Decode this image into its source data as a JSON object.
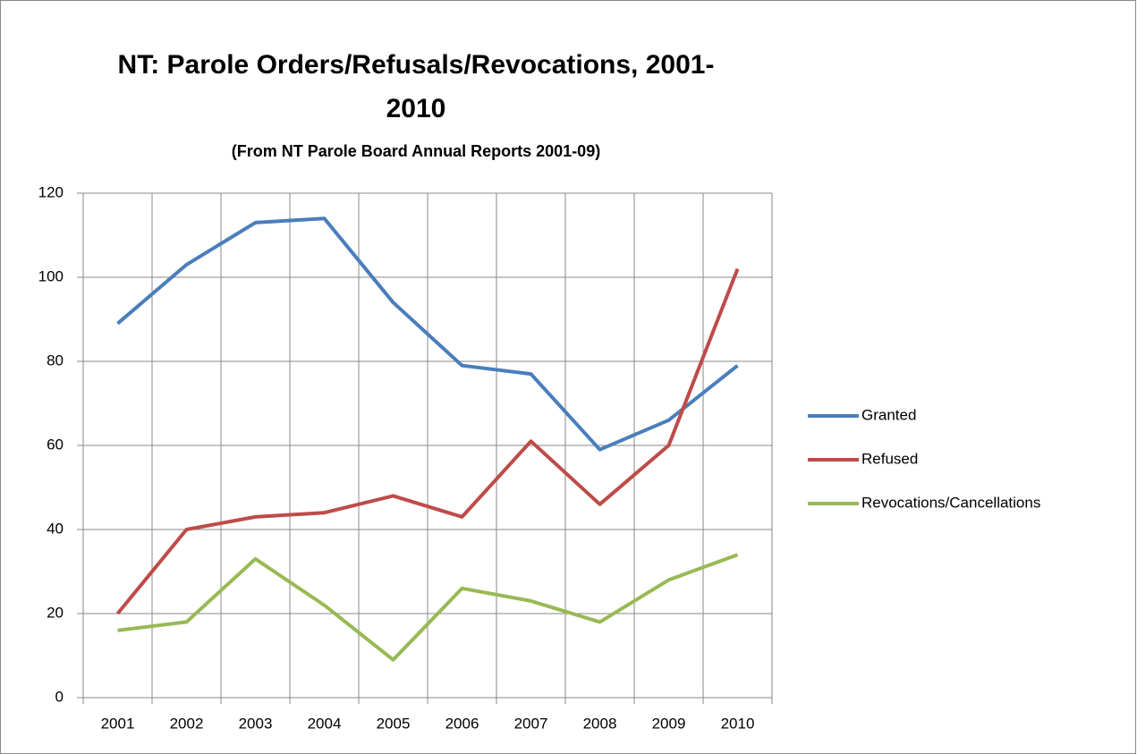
{
  "chart_data": {
    "type": "line",
    "title": "NT: Parole Orders/Refusals/Revocations, 2001-2010",
    "subtitle": "(From NT Parole Board Annual Reports 2001-09)",
    "categories": [
      "2001",
      "2002",
      "2003",
      "2004",
      "2005",
      "2006",
      "2007",
      "2008",
      "2009",
      "2010"
    ],
    "series": [
      {
        "name": "Granted",
        "color": "#4a7ebb",
        "values": [
          89,
          103,
          113,
          114,
          94,
          79,
          77,
          59,
          66,
          79
        ]
      },
      {
        "name": "Refused",
        "color": "#be4b48",
        "values": [
          20,
          40,
          43,
          44,
          48,
          43,
          61,
          46,
          60,
          102
        ]
      },
      {
        "name": "Revocations/Cancellations",
        "color": "#98b954",
        "values": [
          16,
          18,
          33,
          22,
          9,
          26,
          23,
          18,
          28,
          34
        ]
      }
    ],
    "ylim": [
      0,
      120
    ],
    "yticks": [
      0,
      20,
      40,
      60,
      80,
      100,
      120
    ],
    "grid": true,
    "legend": "right"
  }
}
